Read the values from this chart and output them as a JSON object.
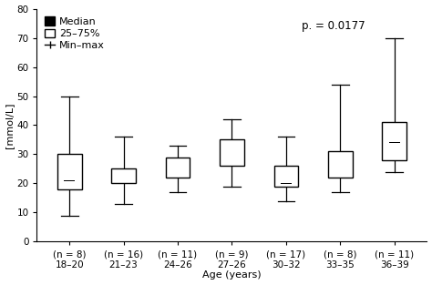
{
  "groups": [
    {
      "label": "(n = 8)\n18–20",
      "median": 21,
      "q1": 18,
      "q3": 30,
      "min": 9,
      "max": 50
    },
    {
      "label": "(n = 16)\n21–23",
      "median": 23,
      "q1": 20,
      "q3": 25,
      "min": 13,
      "max": 36
    },
    {
      "label": "(n = 11)\n24–26",
      "median": 23,
      "q1": 22,
      "q3": 29,
      "min": 17,
      "max": 33
    },
    {
      "label": "(n = 9)\n27–26",
      "median": 28,
      "q1": 26,
      "q3": 35,
      "min": 19,
      "max": 42
    },
    {
      "label": "(n = 17)\n30–32",
      "median": 20,
      "q1": 19,
      "q3": 26,
      "min": 14,
      "max": 36
    },
    {
      "label": "(n = 8)\n33–35",
      "median": 23,
      "q1": 22,
      "q3": 31,
      "min": 17,
      "max": 54
    },
    {
      "label": "(n = 11)\n36–39",
      "median": 34,
      "q1": 28,
      "q3": 41,
      "min": 24,
      "max": 70
    }
  ],
  "ylabel": "[mmol/L]",
  "xlabel": "Age (years)",
  "ylim": [
    0,
    80
  ],
  "yticks": [
    0,
    10,
    20,
    30,
    40,
    50,
    60,
    70,
    80
  ],
  "p_text": "p. = 0.0177",
  "box_color": "#ffffff",
  "box_edge_color": "#000000",
  "median_color": "#000000",
  "whisker_color": "#000000",
  "box_width": 0.45,
  "axis_fontsize": 8,
  "tick_fontsize": 7.5,
  "legend_fontsize": 8
}
